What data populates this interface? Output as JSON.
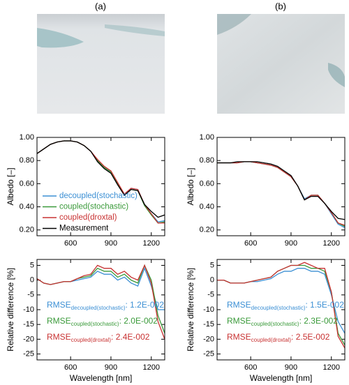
{
  "panel_labels": [
    "(a)",
    "(b)"
  ],
  "chart_data": [
    {
      "type": "line",
      "ylabel": "Albedo [–]",
      "x": [
        350,
        400,
        450,
        500,
        550,
        600,
        650,
        700,
        750,
        800,
        850,
        900,
        950,
        1000,
        1050,
        1100,
        1150,
        1200,
        1250,
        1300
      ],
      "xlim": [
        350,
        1300
      ],
      "xticks": [
        600,
        900,
        1200
      ],
      "ylim": [
        0.15,
        1.0
      ],
      "yticks": [
        {
          "value": 0.2,
          "label": "0.20"
        },
        {
          "value": 0.4,
          "label": "0.40"
        },
        {
          "value": 0.6,
          "label": "0.60"
        },
        {
          "value": 0.8,
          "label": "0.80"
        },
        {
          "value": 1.0,
          "label": "1.00"
        }
      ],
      "legend": "lower left",
      "series": [
        {
          "name": "decoupled(stochastic)",
          "color": "#3b8fd4",
          "values": [
            0.86,
            0.9,
            0.94,
            0.96,
            0.97,
            0.97,
            0.96,
            0.93,
            0.88,
            0.8,
            0.74,
            0.7,
            0.6,
            0.51,
            0.56,
            0.55,
            0.42,
            0.34,
            0.27,
            0.28
          ]
        },
        {
          "name": "coupled(stochastic)",
          "color": "#3a9a3a",
          "values": [
            0.86,
            0.9,
            0.94,
            0.96,
            0.97,
            0.97,
            0.96,
            0.93,
            0.88,
            0.8,
            0.74,
            0.7,
            0.6,
            0.5,
            0.55,
            0.54,
            0.41,
            0.33,
            0.26,
            0.27
          ]
        },
        {
          "name": "coupled(droxtal)",
          "color": "#c83232",
          "values": [
            0.86,
            0.9,
            0.94,
            0.96,
            0.97,
            0.97,
            0.96,
            0.93,
            0.88,
            0.81,
            0.75,
            0.71,
            0.61,
            0.51,
            0.56,
            0.55,
            0.42,
            0.34,
            0.26,
            0.26
          ]
        },
        {
          "name": "Measurement",
          "color": "#000000",
          "values": [
            0.86,
            0.9,
            0.94,
            0.96,
            0.97,
            0.97,
            0.96,
            0.93,
            0.88,
            0.79,
            0.73,
            0.69,
            0.59,
            0.5,
            0.55,
            0.54,
            0.42,
            0.36,
            0.31,
            0.33
          ]
        }
      ]
    },
    {
      "type": "line",
      "ylabel": "Albedo [–]",
      "x": [
        350,
        400,
        450,
        500,
        550,
        600,
        650,
        700,
        750,
        800,
        850,
        900,
        950,
        1000,
        1050,
        1100,
        1150,
        1200,
        1250,
        1300
      ],
      "xlim": [
        350,
        1300
      ],
      "xticks": [
        600,
        900,
        1200
      ],
      "ylim": [
        0.15,
        1.0
      ],
      "yticks": [
        {
          "value": 0.2,
          "label": "0.20"
        },
        {
          "value": 0.4,
          "label": "0.40"
        },
        {
          "value": 0.6,
          "label": "0.60"
        },
        {
          "value": 0.8,
          "label": "0.80"
        },
        {
          "value": 1.0,
          "label": "1.00"
        }
      ],
      "series": [
        {
          "color": "#3b8fd4",
          "values": [
            0.78,
            0.78,
            0.78,
            0.78,
            0.79,
            0.79,
            0.78,
            0.77,
            0.76,
            0.74,
            0.7,
            0.66,
            0.58,
            0.47,
            0.5,
            0.5,
            0.43,
            0.34,
            0.25,
            0.22
          ]
        },
        {
          "color": "#3a9a3a",
          "values": [
            0.78,
            0.78,
            0.78,
            0.78,
            0.79,
            0.79,
            0.78,
            0.77,
            0.76,
            0.74,
            0.7,
            0.66,
            0.58,
            0.46,
            0.5,
            0.5,
            0.43,
            0.35,
            0.26,
            0.23
          ]
        },
        {
          "color": "#c83232",
          "values": [
            0.78,
            0.78,
            0.78,
            0.78,
            0.79,
            0.79,
            0.78,
            0.77,
            0.76,
            0.74,
            0.7,
            0.66,
            0.58,
            0.46,
            0.5,
            0.5,
            0.43,
            0.35,
            0.26,
            0.24
          ]
        },
        {
          "color": "#000000",
          "values": [
            0.78,
            0.78,
            0.78,
            0.79,
            0.79,
            0.79,
            0.79,
            0.78,
            0.77,
            0.75,
            0.71,
            0.67,
            0.58,
            0.46,
            0.49,
            0.49,
            0.43,
            0.36,
            0.3,
            0.29
          ]
        }
      ]
    },
    {
      "type": "line",
      "ylabel": "Relative difference [%]",
      "xlabel": "Wavelength [nm]",
      "x": [
        350,
        400,
        450,
        500,
        550,
        600,
        650,
        700,
        750,
        800,
        850,
        900,
        950,
        1000,
        1050,
        1100,
        1150,
        1200,
        1250,
        1300
      ],
      "xlim": [
        350,
        1300
      ],
      "xticks": [
        600,
        900,
        1200
      ],
      "ylim": [
        -27,
        7
      ],
      "yticks": [
        -25,
        -20,
        -15,
        -10,
        -5,
        0,
        5
      ],
      "series": [
        {
          "color": "#3b8fd4",
          "values": [
            0.5,
            -1,
            -1.5,
            -1,
            -0.5,
            -0.5,
            0,
            0.5,
            1,
            3,
            2,
            2,
            0,
            1,
            -1,
            -2,
            4,
            -2,
            -10,
            -10
          ]
        },
        {
          "color": "#3a9a3a",
          "values": [
            0.5,
            -1,
            -1.5,
            -1,
            -0.5,
            -0.5,
            0.5,
            1,
            1.5,
            4,
            3,
            3,
            1,
            2,
            0,
            -1,
            5,
            0,
            -12,
            -18
          ]
        },
        {
          "color": "#c83232",
          "values": [
            0.5,
            -1,
            -1.5,
            -1,
            -0.5,
            -0.5,
            0.5,
            1.5,
            2,
            5,
            4,
            4,
            2,
            3,
            1,
            0,
            5,
            -1,
            -14,
            -20
          ]
        }
      ],
      "annotations": [
        {
          "text": "RMSE",
          "sub": "decoupled(stochastic)",
          "rest": ": 1.2E-002",
          "color": "#3b8fd4"
        },
        {
          "text": "RMSE",
          "sub": "coupled(stochastic)",
          "rest": ": 2.0E-002",
          "color": "#3a9a3a"
        },
        {
          "text": "RMSE",
          "sub": "coupled(droxtal)",
          "rest": ": 2.4E-002",
          "color": "#c83232"
        }
      ]
    },
    {
      "type": "line",
      "ylabel": "Relative difference [%]",
      "xlabel": "Wavelength [nm]",
      "x": [
        350,
        400,
        450,
        500,
        550,
        600,
        650,
        700,
        750,
        800,
        850,
        900,
        950,
        1000,
        1050,
        1100,
        1150,
        1200,
        1250,
        1300
      ],
      "xlim": [
        350,
        1300
      ],
      "xticks": [
        600,
        900,
        1200
      ],
      "ylim": [
        -27,
        7
      ],
      "yticks": [
        -25,
        -20,
        -15,
        -10,
        -5,
        0,
        5
      ],
      "series": [
        {
          "color": "#3b8fd4",
          "values": [
            0,
            0,
            -1,
            -1,
            -1,
            -0.5,
            -0.5,
            0,
            0.5,
            2,
            3,
            3,
            4,
            4,
            3,
            3,
            2,
            -5,
            -14,
            -18
          ]
        },
        {
          "color": "#3a9a3a",
          "values": [
            0,
            0,
            -1,
            -1,
            -1,
            -0.5,
            0,
            0.5,
            1,
            3,
            4,
            5,
            5,
            5,
            4,
            4,
            3,
            -4,
            -18,
            -22
          ]
        },
        {
          "color": "#c83232",
          "values": [
            0,
            0,
            -1,
            -1,
            -1,
            -0.5,
            0,
            0.5,
            1,
            3,
            4,
            5,
            5,
            6,
            5,
            4,
            4,
            -4,
            -19,
            -23
          ]
        }
      ],
      "annotations": [
        {
          "text": "RMSE",
          "sub": "decoupled(stochastic)",
          "rest": ": 1.5E-002",
          "color": "#3b8fd4"
        },
        {
          "text": "RMSE",
          "sub": "coupled(stochastic)",
          "rest": ": 2.3E-002",
          "color": "#3a9a3a"
        },
        {
          "text": "RMSE",
          "sub": "coupled(droxtal)",
          "rest": ": 2.5E-002",
          "color": "#c83232"
        }
      ]
    }
  ]
}
